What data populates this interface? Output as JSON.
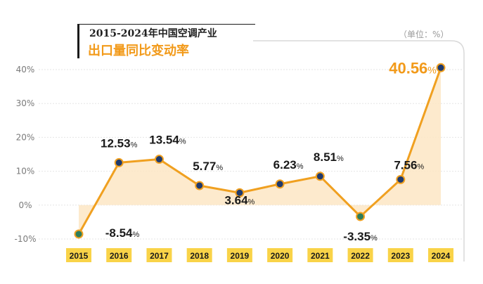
{
  "title": {
    "line1": "2015-2024年中国空调产业",
    "line2": "出口量同比变动率"
  },
  "unit_label": "（单位：%）",
  "colors": {
    "line": "#f0a020",
    "area": "#fde6c4",
    "marker_default": "#1f3a6e",
    "marker_negative": "#2e7d5b",
    "year_badge": "#f9d348",
    "highlight_label": "#f29a1a",
    "text": "#1a1a1a",
    "axis_text": "#7a7a7a"
  },
  "chart_data": {
    "type": "area",
    "title": "2015-2024年中国空调产业出口量同比变动率",
    "categories": [
      "2015",
      "2016",
      "2017",
      "2018",
      "2019",
      "2020",
      "2021",
      "2022",
      "2023",
      "2024"
    ],
    "series": [
      {
        "values": [
          -8.54,
          12.53,
          13.54,
          5.77,
          3.64,
          6.23,
          8.51,
          -3.35,
          7.56,
          40.56
        ]
      }
    ],
    "ylim": [
      -10,
      40
    ],
    "yticks": [
      "-10%",
      "0%",
      "10%",
      "20%",
      "30%",
      "40%"
    ],
    "ytick_values": [
      -10,
      0,
      10,
      20,
      30,
      40
    ],
    "data_labels": [
      {
        "number": "-8.54",
        "unit": "%"
      },
      {
        "number": "12.53",
        "unit": "%"
      },
      {
        "number": "13.54",
        "unit": "%"
      },
      {
        "number": "5.77",
        "unit": "%"
      },
      {
        "number": "3.64",
        "unit": "%"
      },
      {
        "number": "6.23",
        "unit": "%"
      },
      {
        "number": "8.51",
        "unit": "%"
      },
      {
        "number": "-3.35",
        "unit": "%"
      },
      {
        "number": "7.56",
        "unit": "%"
      },
      {
        "number": "40.56",
        "unit": "%"
      }
    ],
    "grid": true,
    "legend": "none"
  }
}
